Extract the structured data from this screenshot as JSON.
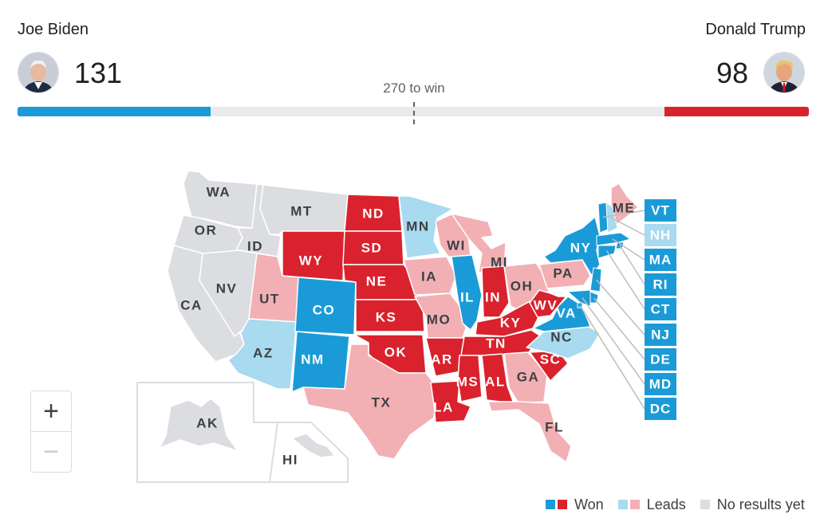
{
  "header": {
    "left_candidate": {
      "name": "Joe Biden",
      "electoral_votes": "131"
    },
    "right_candidate": {
      "name": "Donald Trump",
      "electoral_votes": "98"
    },
    "win_threshold_label": "270 to win"
  },
  "progress": {
    "total": 538,
    "threshold": 270,
    "biden": 131,
    "trump": 98
  },
  "colors": {
    "biden_won": "#1a9bd7",
    "biden_leads": "#a8daf0",
    "trump_won": "#d9222d",
    "trump_leads": "#f2b0b4",
    "no_results": "#dcdde0",
    "track": "#e8eaed"
  },
  "states": [
    {
      "abbr": "WA",
      "status": "none"
    },
    {
      "abbr": "OR",
      "status": "none"
    },
    {
      "abbr": "CA",
      "status": "none"
    },
    {
      "abbr": "ID",
      "status": "none"
    },
    {
      "abbr": "NV",
      "status": "none"
    },
    {
      "abbr": "MT",
      "status": "none"
    },
    {
      "abbr": "WY",
      "status": "trump_won"
    },
    {
      "abbr": "UT",
      "status": "trump_leads"
    },
    {
      "abbr": "AZ",
      "status": "biden_leads"
    },
    {
      "abbr": "CO",
      "status": "biden_won"
    },
    {
      "abbr": "NM",
      "status": "biden_won"
    },
    {
      "abbr": "ND",
      "status": "trump_won"
    },
    {
      "abbr": "SD",
      "status": "trump_won"
    },
    {
      "abbr": "NE",
      "status": "trump_won"
    },
    {
      "abbr": "KS",
      "status": "trump_won"
    },
    {
      "abbr": "OK",
      "status": "trump_won"
    },
    {
      "abbr": "TX",
      "status": "trump_leads"
    },
    {
      "abbr": "MN",
      "status": "biden_leads"
    },
    {
      "abbr": "IA",
      "status": "trump_leads"
    },
    {
      "abbr": "MO",
      "status": "trump_leads"
    },
    {
      "abbr": "AR",
      "status": "trump_won"
    },
    {
      "abbr": "LA",
      "status": "trump_won"
    },
    {
      "abbr": "WI",
      "status": "trump_leads"
    },
    {
      "abbr": "IL",
      "status": "biden_won"
    },
    {
      "abbr": "MI",
      "status": "trump_leads"
    },
    {
      "abbr": "IN",
      "status": "trump_won"
    },
    {
      "abbr": "OH",
      "status": "trump_leads"
    },
    {
      "abbr": "KY",
      "status": "trump_won"
    },
    {
      "abbr": "TN",
      "status": "trump_won"
    },
    {
      "abbr": "MS",
      "status": "trump_won"
    },
    {
      "abbr": "AL",
      "status": "trump_won"
    },
    {
      "abbr": "GA",
      "status": "trump_leads"
    },
    {
      "abbr": "FL",
      "status": "trump_leads"
    },
    {
      "abbr": "SC",
      "status": "trump_won"
    },
    {
      "abbr": "NC",
      "status": "biden_leads"
    },
    {
      "abbr": "VA",
      "status": "biden_won"
    },
    {
      "abbr": "WV",
      "status": "trump_won"
    },
    {
      "abbr": "PA",
      "status": "trump_leads"
    },
    {
      "abbr": "NY",
      "status": "biden_won"
    },
    {
      "abbr": "ME",
      "status": "trump_leads"
    },
    {
      "abbr": "AK",
      "status": "none"
    },
    {
      "abbr": "HI",
      "status": "none"
    }
  ],
  "small_states": [
    {
      "abbr": "VT",
      "status": "biden_won"
    },
    {
      "abbr": "NH",
      "status": "biden_leads"
    },
    {
      "abbr": "MA",
      "status": "biden_won"
    },
    {
      "abbr": "RI",
      "status": "biden_won"
    },
    {
      "abbr": "CT",
      "status": "biden_won"
    },
    {
      "abbr": "NJ",
      "status": "biden_won"
    },
    {
      "abbr": "DE",
      "status": "biden_won"
    },
    {
      "abbr": "MD",
      "status": "biden_won"
    },
    {
      "abbr": "DC",
      "status": "biden_won"
    }
  ],
  "zoom": {
    "in_symbol": "+",
    "out_symbol": "−"
  },
  "legend": {
    "won": "Won",
    "leads": "Leads",
    "no_results": "No results yet"
  }
}
